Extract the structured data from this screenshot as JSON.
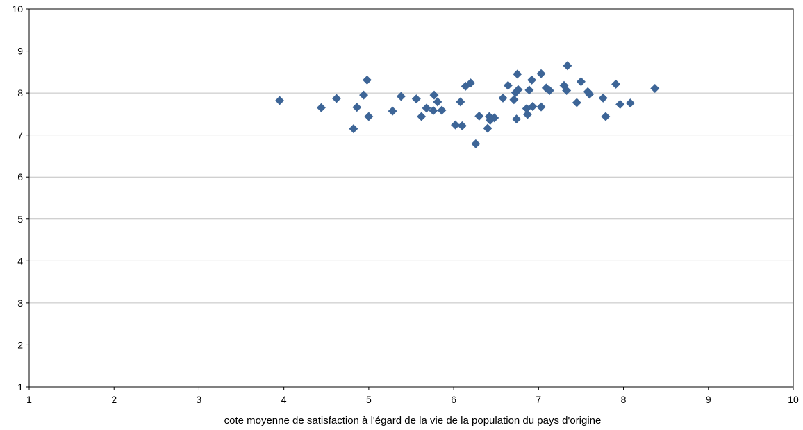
{
  "chart_data": {
    "type": "scatter",
    "title": "",
    "xlabel": "cote moyenne de satisfaction à l'égard de la vie de la population du pays d'origine",
    "ylabel": "",
    "xlim": [
      1,
      10
    ],
    "ylim": [
      1,
      10
    ],
    "x_ticks": [
      "1",
      "2",
      "3",
      "4",
      "5",
      "6",
      "7",
      "8",
      "9",
      "10"
    ],
    "y_ticks": [
      "1",
      "2",
      "3",
      "4",
      "5",
      "6",
      "7",
      "8",
      "9",
      "10"
    ],
    "grid": "horizontal",
    "legend": "none",
    "marker": "diamond",
    "marker_color": "#3d6597",
    "points": [
      [
        3.95,
        7.82
      ],
      [
        4.44,
        7.65
      ],
      [
        4.62,
        7.87
      ],
      [
        4.82,
        7.15
      ],
      [
        4.86,
        7.66
      ],
      [
        4.94,
        7.95
      ],
      [
        4.98,
        8.31
      ],
      [
        5.0,
        7.44
      ],
      [
        5.28,
        7.57
      ],
      [
        5.38,
        7.92
      ],
      [
        5.56,
        7.86
      ],
      [
        5.62,
        7.44
      ],
      [
        5.68,
        7.64
      ],
      [
        5.76,
        7.58
      ],
      [
        5.77,
        7.95
      ],
      [
        5.81,
        7.79
      ],
      [
        5.86,
        7.59
      ],
      [
        6.02,
        7.24
      ],
      [
        6.08,
        7.79
      ],
      [
        6.1,
        7.22
      ],
      [
        6.14,
        8.16
      ],
      [
        6.2,
        8.24
      ],
      [
        6.26,
        6.79
      ],
      [
        6.3,
        7.45
      ],
      [
        6.4,
        7.16
      ],
      [
        6.42,
        7.44
      ],
      [
        6.43,
        7.35
      ],
      [
        6.48,
        7.41
      ],
      [
        6.58,
        7.88
      ],
      [
        6.64,
        8.18
      ],
      [
        6.71,
        7.84
      ],
      [
        6.73,
        8.01
      ],
      [
        6.75,
        8.45
      ],
      [
        6.74,
        7.38
      ],
      [
        6.76,
        8.08
      ],
      [
        6.86,
        7.63
      ],
      [
        6.87,
        7.49
      ],
      [
        6.89,
        8.07
      ],
      [
        6.92,
        8.31
      ],
      [
        6.93,
        7.68
      ],
      [
        7.03,
        8.46
      ],
      [
        7.03,
        7.67
      ],
      [
        7.09,
        8.12
      ],
      [
        7.13,
        8.06
      ],
      [
        7.3,
        8.18
      ],
      [
        7.33,
        8.06
      ],
      [
        7.34,
        8.65
      ],
      [
        7.45,
        7.77
      ],
      [
        7.5,
        8.27
      ],
      [
        7.58,
        8.03
      ],
      [
        7.6,
        7.97
      ],
      [
        7.76,
        7.88
      ],
      [
        7.79,
        7.44
      ],
      [
        7.91,
        8.21
      ],
      [
        7.96,
        7.73
      ],
      [
        8.08,
        7.76
      ],
      [
        8.37,
        8.11
      ]
    ]
  }
}
